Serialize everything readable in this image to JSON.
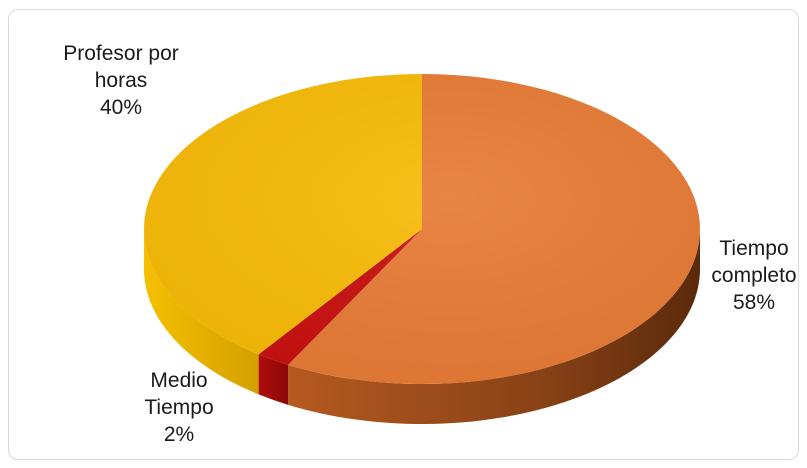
{
  "chart_data": {
    "type": "pie",
    "title": "",
    "style": "3d",
    "slices": [
      {
        "name": "Tiempo completo",
        "value": 58,
        "label": "58%",
        "color": "#E87B35"
      },
      {
        "name": "Medio Tiempo",
        "value": 2,
        "label": "2%",
        "color": "#C8100F"
      },
      {
        "name": "Profesor por horas",
        "value": 40,
        "label": "40%",
        "color": "#F8BB07"
      }
    ],
    "legend": "none"
  },
  "labels": {
    "profesor": {
      "line1": "Profesor por",
      "line2": "horas",
      "pct": "40%"
    },
    "tiempo": {
      "line1": "Tiempo",
      "line2": "completo",
      "pct": "58%"
    },
    "medio": {
      "line1": "Medio",
      "line2": "Tiempo",
      "pct": "2%"
    }
  }
}
